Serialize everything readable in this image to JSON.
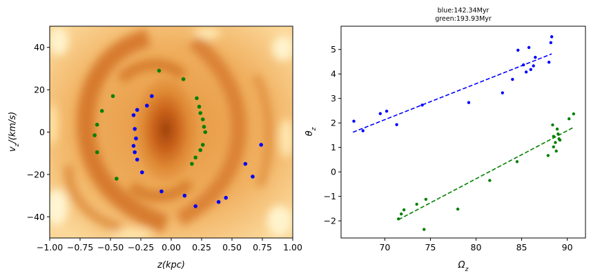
{
  "chart_data": [
    {
      "type": "heatmap",
      "xlabel": "z(kpc)",
      "ylabel": "v_z/(km/s)",
      "xlim": [
        -1.0,
        1.0
      ],
      "ylim": [
        -50,
        50
      ],
      "xticks": [
        "−1.00",
        "−0.75",
        "−0.50",
        "−0.25",
        "0.00",
        "0.25",
        "0.50",
        "0.75",
        "1.00"
      ],
      "xtick_values": [
        -1.0,
        -0.75,
        -0.5,
        -0.25,
        0.0,
        0.25,
        0.5,
        0.75,
        1.0
      ],
      "yticks": [
        "−40",
        "−20",
        "0",
        "20",
        "40"
      ],
      "ytick_values": [
        -40,
        -20,
        0,
        20,
        40
      ],
      "colormap": "orange-spiral",
      "series": [
        {
          "color": "#0000ff",
          "points": [
            [
              -0.31,
              8
            ],
            [
              -0.28,
              10.5
            ],
            [
              -0.2,
              12.5
            ],
            [
              -0.16,
              17
            ],
            [
              -0.3,
              1.5
            ],
            [
              -0.29,
              -3
            ],
            [
              -0.31,
              -6.5
            ],
            [
              -0.3,
              -9.5
            ],
            [
              -0.28,
              -13
            ],
            [
              -0.24,
              -19
            ],
            [
              -0.08,
              -28
            ],
            [
              0.11,
              -30
            ],
            [
              0.2,
              -35
            ],
            [
              0.39,
              -33
            ],
            [
              0.45,
              -31
            ],
            [
              0.61,
              -15
            ],
            [
              0.67,
              -21
            ],
            [
              0.74,
              -6
            ]
          ]
        },
        {
          "color": "#008000",
          "points": [
            [
              -0.1,
              29
            ],
            [
              0.1,
              25
            ],
            [
              -0.48,
              17
            ],
            [
              -0.57,
              10
            ],
            [
              -0.61,
              3.5
            ],
            [
              -0.63,
              -1.5
            ],
            [
              -0.61,
              -9.5
            ],
            [
              -0.45,
              -22
            ],
            [
              0.21,
              16
            ],
            [
              0.23,
              12
            ],
            [
              0.24,
              9
            ],
            [
              0.26,
              6
            ],
            [
              0.27,
              2.5
            ],
            [
              0.28,
              0
            ],
            [
              0.26,
              -6
            ],
            [
              0.24,
              -8.5
            ],
            [
              0.2,
              -12
            ],
            [
              0.17,
              -15
            ]
          ]
        }
      ]
    },
    {
      "type": "scatter",
      "title_lines": [
        "blue:142.34Myr",
        "green:193.93Myr"
      ],
      "xlabel": "Ω_z",
      "ylabel": "θ_z",
      "xlim": [
        65.2,
        92.0
      ],
      "ylim": [
        -2.7,
        5.95
      ],
      "xticks": [
        "70",
        "75",
        "80",
        "85",
        "90"
      ],
      "xtick_values": [
        70,
        75,
        80,
        85,
        90
      ],
      "yticks": [
        "−2",
        "−1",
        "0",
        "1",
        "2",
        "3",
        "4",
        "5"
      ],
      "ytick_values": [
        -2,
        -1,
        0,
        1,
        2,
        3,
        4,
        5
      ],
      "series": [
        {
          "color": "#0000ff",
          "points": [
            [
              66.6,
              2.07
            ],
            [
              67.6,
              1.68
            ],
            [
              69.5,
              2.38
            ],
            [
              70.2,
              2.48
            ],
            [
              71.3,
              1.93
            ],
            [
              74.1,
              2.73
            ],
            [
              79.2,
              2.83
            ],
            [
              82.9,
              3.23
            ],
            [
              84.0,
              3.78
            ],
            [
              84.6,
              4.97
            ],
            [
              85.2,
              4.37
            ],
            [
              85.5,
              4.08
            ],
            [
              85.8,
              5.08
            ],
            [
              86.0,
              4.18
            ],
            [
              86.3,
              4.33
            ],
            [
              86.5,
              4.68
            ],
            [
              88.0,
              4.48
            ],
            [
              88.2,
              5.28
            ],
            [
              88.3,
              5.52
            ]
          ],
          "fit": [
            [
              66.5,
              1.62
            ],
            [
              88.3,
              4.82
            ]
          ]
        },
        {
          "color": "#008000",
          "points": [
            [
              71.5,
              -1.92
            ],
            [
              71.8,
              -1.72
            ],
            [
              72.1,
              -1.55
            ],
            [
              73.5,
              -1.32
            ],
            [
              74.3,
              -2.35
            ],
            [
              74.5,
              -1.12
            ],
            [
              78.0,
              -1.52
            ],
            [
              81.5,
              -0.35
            ],
            [
              84.5,
              0.42
            ],
            [
              87.9,
              0.67
            ],
            [
              88.4,
              1.92
            ],
            [
              88.5,
              1.45
            ],
            [
              88.5,
              1.02
            ],
            [
              88.7,
              1.2
            ],
            [
              88.8,
              0.85
            ],
            [
              88.9,
              1.75
            ],
            [
              89.0,
              1.55
            ],
            [
              89.1,
              1.35
            ],
            [
              89.2,
              1.3
            ],
            [
              90.2,
              2.17
            ],
            [
              90.7,
              2.37
            ]
          ],
          "fit": [
            [
              71.5,
              -1.95
            ],
            [
              90.7,
              1.82
            ]
          ]
        }
      ]
    }
  ]
}
